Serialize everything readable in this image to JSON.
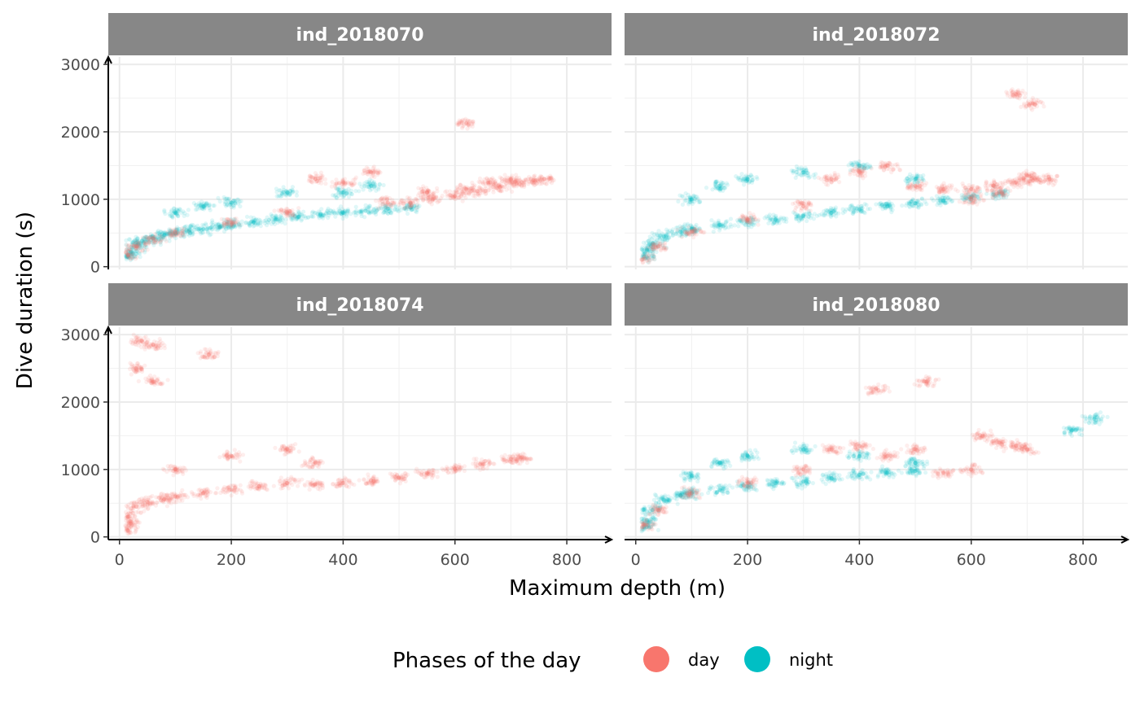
{
  "chart_data": {
    "type": "scatter",
    "xlabel": "Maximum depth (m)",
    "ylabel": "Dive duration (s)",
    "xlim": [
      -20,
      880
    ],
    "ylim": [
      -40,
      3110
    ],
    "x_ticks": [
      0,
      200,
      400,
      600,
      800
    ],
    "y_ticks": [
      0,
      1000,
      2000,
      3000
    ],
    "x_tick_labels": [
      "0",
      "200",
      "400",
      "600",
      "800"
    ],
    "y_tick_labels": [
      "0",
      "1000",
      "2000",
      "3000"
    ],
    "grid": true,
    "legend": {
      "title": "Phases of the day",
      "position": "bottom",
      "entries": [
        {
          "label": "day",
          "color": "#F8766D"
        },
        {
          "label": "night",
          "color": "#00BFC4"
        }
      ]
    },
    "panels": [
      {
        "title": "ind_2018070",
        "series": [
          {
            "name": "night",
            "color": "#00BFC4",
            "points": [
              [
                15,
                150
              ],
              [
                20,
                220
              ],
              [
                30,
                320
              ],
              [
                40,
                380
              ],
              [
                60,
                420
              ],
              [
                80,
                470
              ],
              [
                100,
                500
              ],
              [
                120,
                540
              ],
              [
                150,
                560
              ],
              [
                180,
                590
              ],
              [
                200,
                620
              ],
              [
                240,
                660
              ],
              [
                280,
                700
              ],
              [
                320,
                740
              ],
              [
                360,
                780
              ],
              [
                400,
                800
              ],
              [
                440,
                830
              ],
              [
                480,
                860
              ],
              [
                520,
                880
              ],
              [
                100,
                800
              ],
              [
                150,
                900
              ],
              [
                200,
                950
              ],
              [
                300,
                1100
              ],
              [
                400,
                1100
              ],
              [
                450,
                1200
              ]
            ]
          },
          {
            "name": "day",
            "color": "#F8766D",
            "points": [
              [
                15,
                180
              ],
              [
                30,
                300
              ],
              [
                60,
                420
              ],
              [
                100,
                520
              ],
              [
                200,
                650
              ],
              [
                300,
                800
              ],
              [
                350,
                1300
              ],
              [
                400,
                1250
              ],
              [
                450,
                1400
              ],
              [
                480,
                950
              ],
              [
                520,
                950
              ],
              [
                560,
                1000
              ],
              [
                600,
                1050
              ],
              [
                640,
                1120
              ],
              [
                680,
                1180
              ],
              [
                710,
                1230
              ],
              [
                740,
                1280
              ],
              [
                760,
                1300
              ],
              [
                550,
                1100
              ],
              [
                620,
                1150
              ],
              [
                660,
                1250
              ],
              [
                700,
                1300
              ],
              [
                620,
                2130
              ]
            ]
          }
        ]
      },
      {
        "title": "ind_2018072",
        "series": [
          {
            "name": "night",
            "color": "#00BFC4",
            "points": [
              [
                15,
                150
              ],
              [
                20,
                250
              ],
              [
                30,
                350
              ],
              [
                50,
                450
              ],
              [
                80,
                520
              ],
              [
                100,
                560
              ],
              [
                150,
                620
              ],
              [
                200,
                660
              ],
              [
                250,
                700
              ],
              [
                300,
                750
              ],
              [
                350,
                800
              ],
              [
                400,
                850
              ],
              [
                450,
                900
              ],
              [
                500,
                940
              ],
              [
                550,
                980
              ],
              [
                600,
                1030
              ],
              [
                650,
                1080
              ],
              [
                100,
                1000
              ],
              [
                150,
                1200
              ],
              [
                200,
                1300
              ],
              [
                300,
                1400
              ],
              [
                400,
                1500
              ],
              [
                500,
                1300
              ]
            ]
          },
          {
            "name": "day",
            "color": "#F8766D",
            "points": [
              [
                15,
                120
              ],
              [
                40,
                300
              ],
              [
                100,
                520
              ],
              [
                200,
                700
              ],
              [
                300,
                900
              ],
              [
                350,
                1300
              ],
              [
                400,
                1400
              ],
              [
                450,
                1500
              ],
              [
                500,
                1200
              ],
              [
                550,
                1150
              ],
              [
                600,
                1150
              ],
              [
                640,
                1200
              ],
              [
                680,
                1250
              ],
              [
                710,
                1280
              ],
              [
                740,
                1300
              ],
              [
                600,
                1000
              ],
              [
                650,
                1100
              ],
              [
                700,
                1350
              ],
              [
                680,
                2560
              ],
              [
                710,
                2420
              ]
            ]
          }
        ]
      },
      {
        "title": "ind_2018074",
        "series": [
          {
            "name": "day",
            "color": "#F8766D",
            "points": [
              [
                15,
                100
              ],
              [
                15,
                300
              ],
              [
                20,
                200
              ],
              [
                30,
                450
              ],
              [
                50,
                520
              ],
              [
                80,
                560
              ],
              [
                100,
                600
              ],
              [
                150,
                650
              ],
              [
                200,
                700
              ],
              [
                250,
                750
              ],
              [
                300,
                800
              ],
              [
                350,
                780
              ],
              [
                400,
                800
              ],
              [
                450,
                840
              ],
              [
                500,
                880
              ],
              [
                550,
                950
              ],
              [
                600,
                1010
              ],
              [
                650,
                1080
              ],
              [
                700,
                1150
              ],
              [
                720,
                1180
              ],
              [
                100,
                1000
              ],
              [
                200,
                1200
              ],
              [
                300,
                1300
              ],
              [
                350,
                1100
              ],
              [
                40,
                2900
              ],
              [
                60,
                2850
              ],
              [
                30,
                2500
              ],
              [
                60,
                2300
              ],
              [
                160,
                2700
              ]
            ]
          }
        ]
      },
      {
        "title": "ind_2018080",
        "series": [
          {
            "name": "night",
            "color": "#00BFC4",
            "points": [
              [
                15,
                150
              ],
              [
                20,
                250
              ],
              [
                30,
                400
              ],
              [
                50,
                550
              ],
              [
                80,
                620
              ],
              [
                100,
                650
              ],
              [
                150,
                700
              ],
              [
                200,
                750
              ],
              [
                250,
                800
              ],
              [
                300,
                820
              ],
              [
                350,
                870
              ],
              [
                400,
                920
              ],
              [
                450,
                950
              ],
              [
                500,
                980
              ],
              [
                100,
                900
              ],
              [
                150,
                1100
              ],
              [
                200,
                1200
              ],
              [
                300,
                1300
              ],
              [
                400,
                1200
              ],
              [
                500,
                1100
              ],
              [
                780,
                1580
              ],
              [
                820,
                1750
              ]
            ]
          },
          {
            "name": "day",
            "color": "#F8766D",
            "points": [
              [
                15,
                180
              ],
              [
                40,
                400
              ],
              [
                100,
                650
              ],
              [
                200,
                800
              ],
              [
                300,
                1000
              ],
              [
                350,
                1300
              ],
              [
                400,
                1350
              ],
              [
                450,
                1200
              ],
              [
                500,
                1300
              ],
              [
                550,
                950
              ],
              [
                600,
                1000
              ],
              [
                620,
                1500
              ],
              [
                650,
                1400
              ],
              [
                680,
                1350
              ],
              [
                700,
                1300
              ],
              [
                520,
                2300
              ],
              [
                430,
                2200
              ]
            ]
          }
        ]
      }
    ]
  }
}
